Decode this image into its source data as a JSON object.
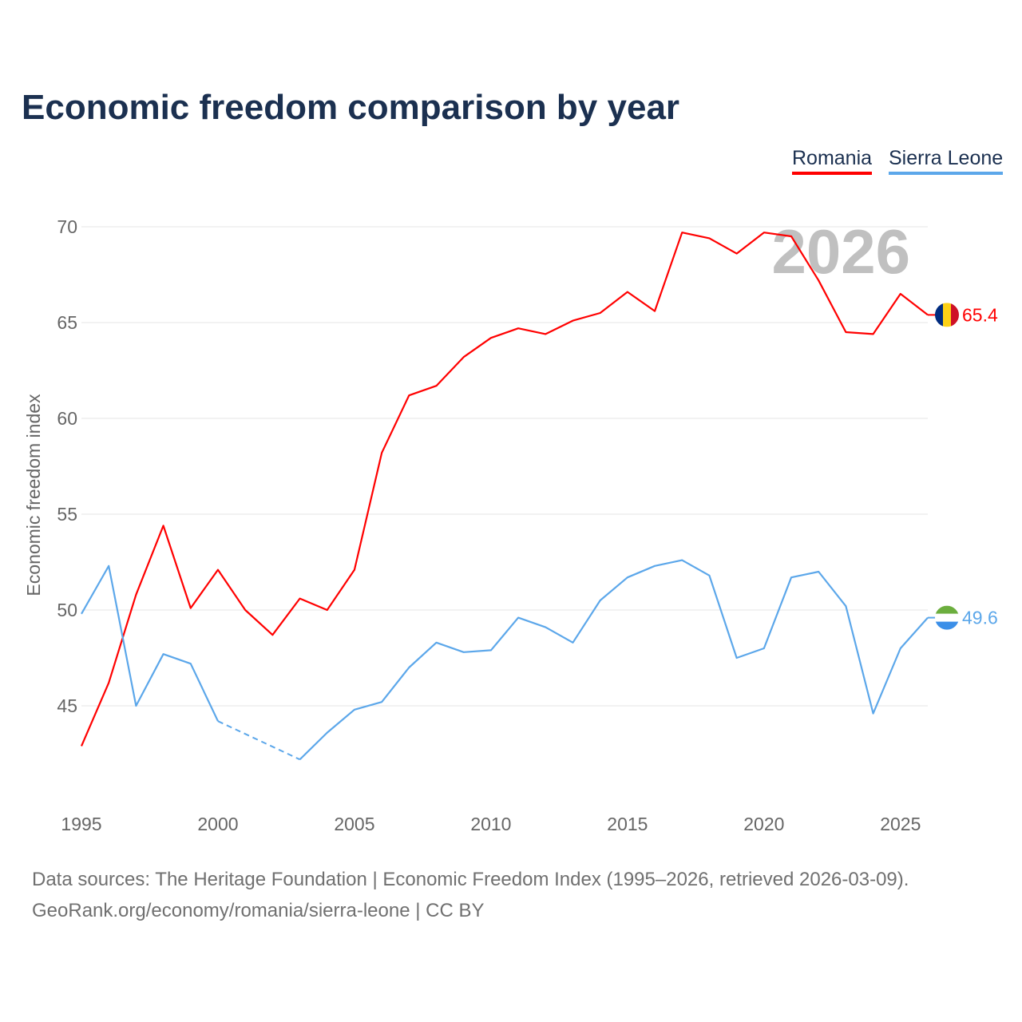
{
  "title": "Economic freedom comparison by year",
  "footer": {
    "line1": "Data sources: The Heritage Foundation | Economic Freedom Index (1995–2026, retrieved 2026-03-09).",
    "line2": "GeoRank.org/economy/romania/sierra-leone | CC BY"
  },
  "chart_data": {
    "type": "line",
    "title": "Economic freedom comparison by year",
    "xlabel": "",
    "ylabel": "Economic freedom index",
    "xlim": [
      1995,
      2026
    ],
    "ylim": [
      40,
      70
    ],
    "x_ticks": [
      "1995",
      "2000",
      "2005",
      "2010",
      "2015",
      "2020",
      "2025"
    ],
    "y_ticks": [
      "45",
      "50",
      "55",
      "60",
      "65",
      "70"
    ],
    "grid": true,
    "legend_placement": "top-right",
    "watermark": "2026",
    "x": [
      1995,
      1996,
      1997,
      1998,
      1999,
      2000,
      2001,
      2002,
      2003,
      2004,
      2005,
      2006,
      2007,
      2008,
      2009,
      2010,
      2011,
      2012,
      2013,
      2014,
      2015,
      2016,
      2017,
      2018,
      2019,
      2020,
      2021,
      2022,
      2023,
      2024,
      2025,
      2026
    ],
    "series": [
      {
        "name": "Romania",
        "color": "#ff0000",
        "end_label": "65.4",
        "flag": "romania-flag",
        "values": [
          42.9,
          46.2,
          50.8,
          54.4,
          50.1,
          52.1,
          50.0,
          48.7,
          50.6,
          50.0,
          52.1,
          58.2,
          61.2,
          61.7,
          63.2,
          64.2,
          64.7,
          64.4,
          65.1,
          65.5,
          66.6,
          65.6,
          69.7,
          69.4,
          68.6,
          69.7,
          69.5,
          67.2,
          64.5,
          64.4,
          66.5,
          65.4
        ]
      },
      {
        "name": "Sierra Leone",
        "color": "#5ca7ea",
        "end_label": "49.6",
        "flag": "sierra-leone-flag",
        "values": [
          49.8,
          52.3,
          45.0,
          47.7,
          47.2,
          44.2,
          null,
          null,
          42.2,
          43.6,
          44.8,
          45.2,
          47.0,
          48.3,
          47.8,
          47.9,
          49.6,
          49.1,
          48.3,
          50.5,
          51.7,
          52.3,
          52.6,
          51.8,
          47.5,
          48.0,
          51.7,
          52.0,
          50.2,
          44.6,
          48.0,
          49.6
        ]
      }
    ]
  }
}
